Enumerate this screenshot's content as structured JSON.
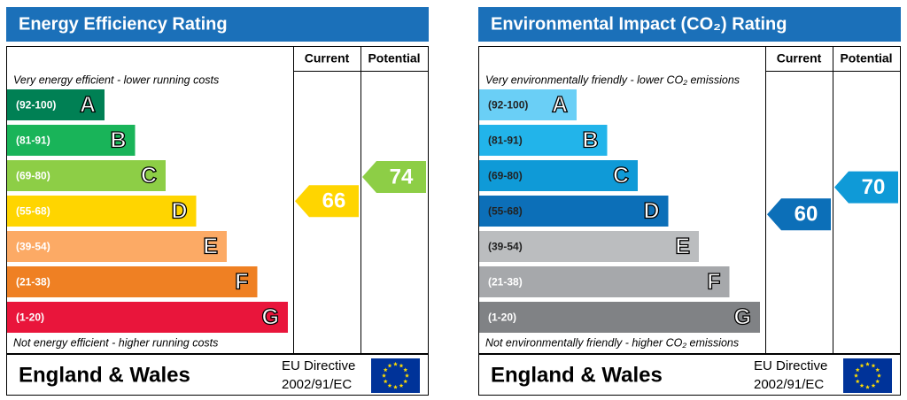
{
  "panels": [
    {
      "title": "Energy Efficiency Rating",
      "columns": [
        "Current",
        "Potential"
      ],
      "top_note": "Very energy efficient - lower running costs",
      "bottom_note": "Not energy efficient - higher running costs",
      "bands": [
        {
          "range": "(92-100)",
          "letter": "A",
          "color": "#008054",
          "text_color": "#ffffff"
        },
        {
          "range": "(81-91)",
          "letter": "B",
          "color": "#19b459",
          "text_color": "#ffffff"
        },
        {
          "range": "(69-80)",
          "letter": "C",
          "color": "#8dce46",
          "text_color": "#ffffff"
        },
        {
          "range": "(55-68)",
          "letter": "D",
          "color": "#ffd500",
          "text_color": "#ffffff"
        },
        {
          "range": "(39-54)",
          "letter": "E",
          "color": "#fcaa65",
          "text_color": "#ffffff"
        },
        {
          "range": "(21-38)",
          "letter": "F",
          "color": "#ef8023",
          "text_color": "#ffffff"
        },
        {
          "range": "(1-20)",
          "letter": "G",
          "color": "#e9153b",
          "text_color": "#ffffff"
        }
      ],
      "current": 66,
      "potential": 74,
      "region": "England & Wales",
      "directive": [
        "EU Directive",
        "2002/91/EC"
      ]
    },
    {
      "title": "Environmental Impact (CO₂) Rating",
      "columns": [
        "Current",
        "Potential"
      ],
      "top_note": "Very environmentally friendly - lower CO₂ emissions",
      "bottom_note": "Not environmentally friendly - higher CO₂ emissions",
      "bands": [
        {
          "range": "(92-100)",
          "letter": "A",
          "color": "#6acff6",
          "text_color": "#222222"
        },
        {
          "range": "(81-91)",
          "letter": "B",
          "color": "#22b4ea",
          "text_color": "#222222"
        },
        {
          "range": "(69-80)",
          "letter": "C",
          "color": "#0f9ad7",
          "text_color": "#222222"
        },
        {
          "range": "(55-68)",
          "letter": "D",
          "color": "#0c6fb8",
          "text_color": "#222222"
        },
        {
          "range": "(39-54)",
          "letter": "E",
          "color": "#bbbdbf",
          "text_color": "#222222"
        },
        {
          "range": "(21-38)",
          "letter": "F",
          "color": "#a6a8ab",
          "text_color": "#ffffff"
        },
        {
          "range": "(1-20)",
          "letter": "G",
          "color": "#808285",
          "text_color": "#ffffff"
        }
      ],
      "current": 60,
      "potential": 70,
      "region": "England & Wales",
      "directive": [
        "EU Directive",
        "2002/91/EC"
      ]
    }
  ]
}
